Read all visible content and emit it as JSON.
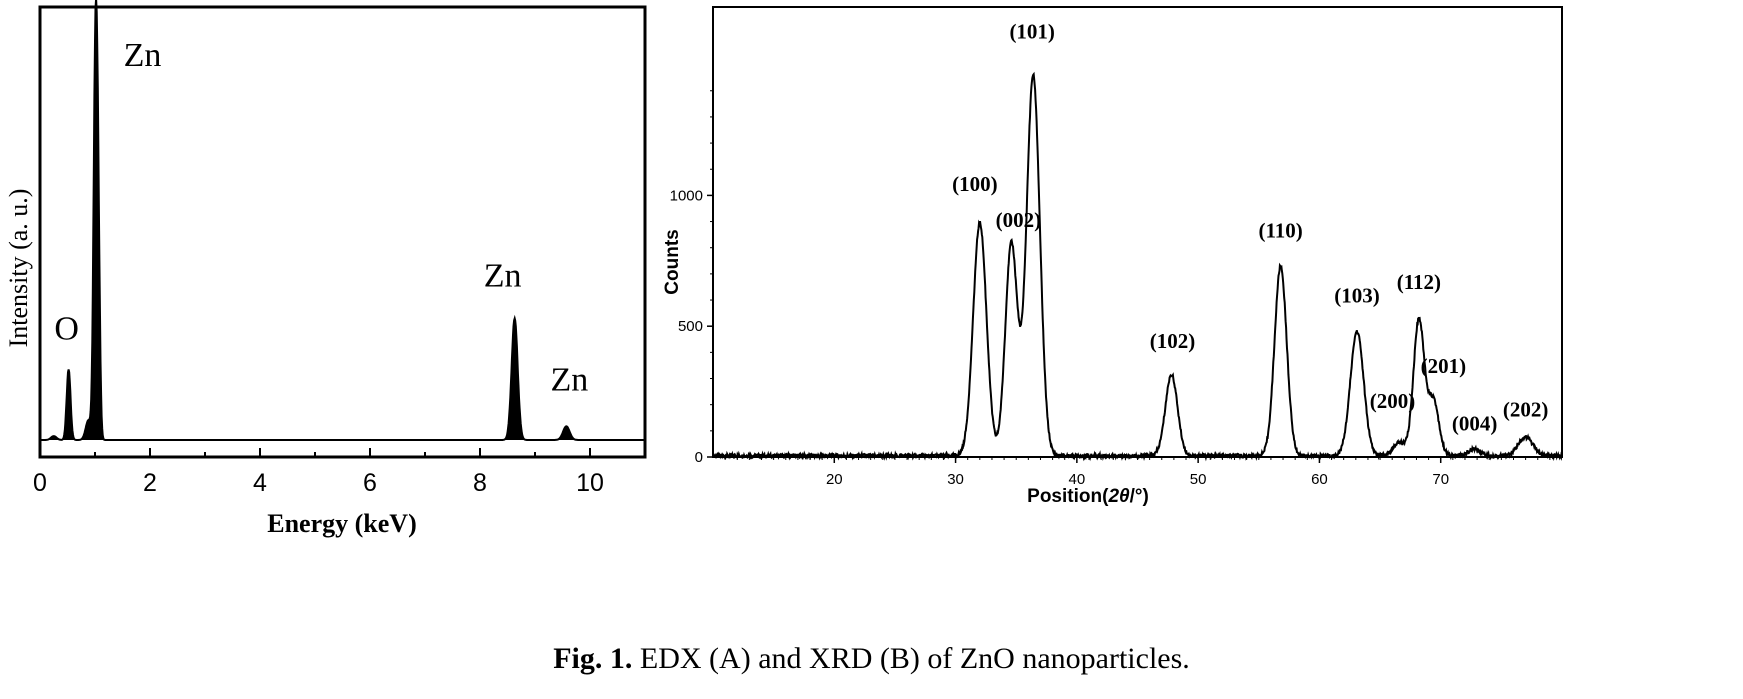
{
  "caption": {
    "bold": "Fig. 1.",
    "text": " EDX (A) and XRD (B) of ZnO nanoparticles."
  },
  "chart_data": [
    {
      "type": "line",
      "xlabel": "Energy (keV)",
      "ylabel": "Intensity (a. u.)",
      "xlim": [
        0,
        11
      ],
      "ylim": [
        0,
        100
      ],
      "xticks": [
        0,
        2,
        4,
        6,
        8,
        10
      ],
      "series": [
        {
          "peaks": [
            {
              "x": 0.25,
              "height": 1,
              "width": 0.05
            },
            {
              "x": 0.52,
              "height": 18,
              "width": 0.035
            },
            {
              "x": 0.88,
              "height": 5,
              "width": 0.05
            },
            {
              "x": 1.01,
              "height": 100,
              "width": 0.035
            },
            {
              "x": 1.06,
              "height": 40,
              "width": 0.03
            },
            {
              "x": 8.63,
              "height": 31,
              "width": 0.055
            },
            {
              "x": 9.57,
              "height": 3.5,
              "width": 0.06
            }
          ]
        }
      ],
      "annotations": [
        {
          "text": "Zn",
          "x": 1.01,
          "y": 100
        },
        {
          "text": "O",
          "x": 0.52,
          "y": 18
        },
        {
          "text": "Zn",
          "x": 8.63,
          "y": 31
        },
        {
          "text": "Zn",
          "x": 9.57,
          "y": 3.5
        }
      ]
    },
    {
      "type": "line",
      "xlabel_prefix": "Position(",
      "xlabel_symbol": "2θ",
      "xlabel_suffix": "/°)",
      "ylabel": "Counts",
      "xlim": [
        10,
        80
      ],
      "ylim": [
        0,
        1500
      ],
      "xticks": [
        20,
        30,
        40,
        50,
        60,
        70
      ],
      "yticks": [
        0,
        500,
        1000
      ],
      "baseline": 5,
      "series": [
        {
          "peaks": [
            {
              "x": 32.0,
              "height": 890,
              "width": 0.55
            },
            {
              "x": 34.6,
              "height": 810,
              "width": 0.5
            },
            {
              "x": 36.4,
              "height": 1455,
              "width": 0.55
            },
            {
              "x": 47.8,
              "height": 310,
              "width": 0.5
            },
            {
              "x": 56.8,
              "height": 725,
              "width": 0.5
            },
            {
              "x": 63.1,
              "height": 475,
              "width": 0.55
            },
            {
              "x": 66.6,
              "height": 50,
              "width": 0.5
            },
            {
              "x": 68.2,
              "height": 520,
              "width": 0.45
            },
            {
              "x": 69.4,
              "height": 210,
              "width": 0.45
            },
            {
              "x": 72.8,
              "height": 25,
              "width": 0.5
            },
            {
              "x": 77.0,
              "height": 70,
              "width": 0.6
            }
          ]
        }
      ],
      "annotations": [
        {
          "text": "(100)",
          "x": 32.0,
          "y": 890
        },
        {
          "text": "(002)",
          "x": 34.6,
          "y": 810
        },
        {
          "text": "(101)",
          "x": 36.4,
          "y": 1455
        },
        {
          "text": "(102)",
          "x": 47.8,
          "y": 310
        },
        {
          "text": "(110)",
          "x": 56.8,
          "y": 725
        },
        {
          "text": "(103)",
          "x": 63.1,
          "y": 475
        },
        {
          "text": "(200)",
          "x": 66.6,
          "y": 50
        },
        {
          "text": "(112)",
          "x": 68.2,
          "y": 520
        },
        {
          "text": "(201)",
          "x": 69.4,
          "y": 210
        },
        {
          "text": "(004)",
          "x": 72.8,
          "y": 25
        },
        {
          "text": "(202)",
          "x": 77.0,
          "y": 70
        }
      ]
    }
  ]
}
